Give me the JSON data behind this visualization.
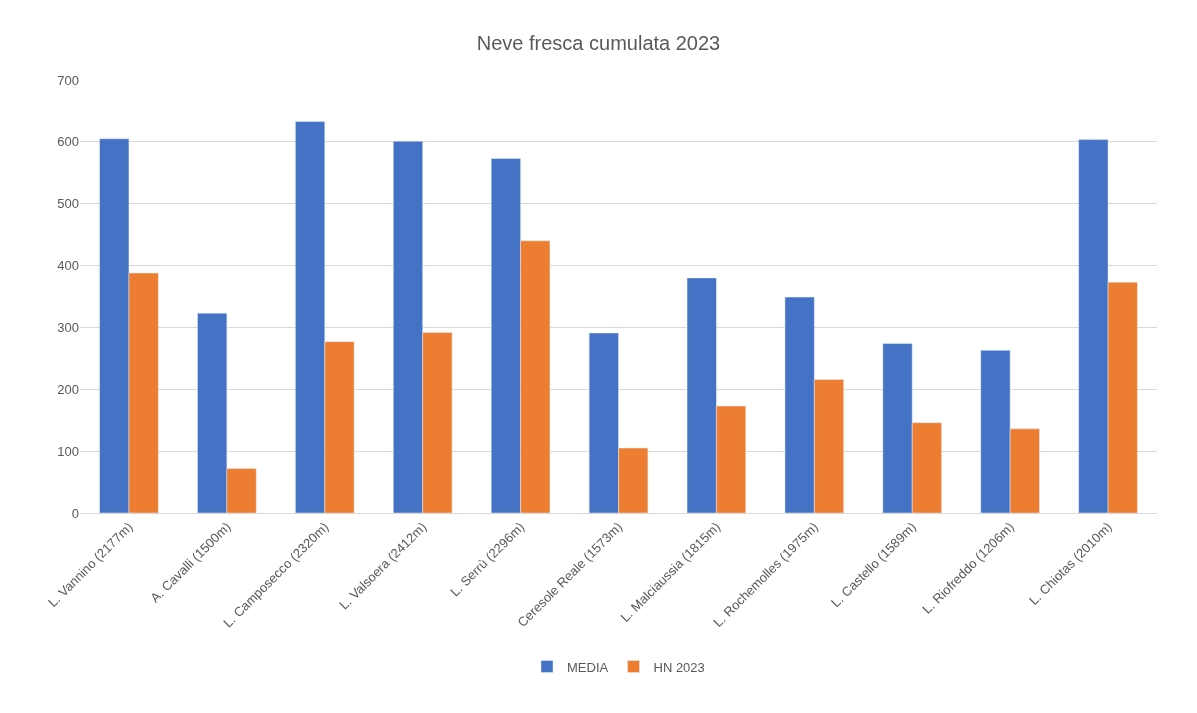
{
  "chart_data": {
    "type": "bar",
    "title": "Neve fresca cumulata 2023",
    "categories": [
      "L. Vannino (2177m)",
      "A. Cavalli (1500m)",
      "L. Camposecco (2320m)",
      "L. Valsoera (2412m)",
      "L. Serrù (2296m)",
      "Ceresole Reale (1573m)",
      "L. Malciaussia (1815m)",
      "L. Rochemolles (1975m)",
      "L. Castello (1589m)",
      "L. Riofreddo (1206m)",
      "L. Chiotas (2010m)"
    ],
    "series": [
      {
        "name": "MEDIA",
        "color": "#4472c4",
        "values": [
          605,
          323,
          633,
          601,
          573,
          291,
          380,
          349,
          274,
          263,
          604
        ]
      },
      {
        "name": "HN 2023",
        "color": "#ed7d31",
        "values": [
          388,
          72,
          277,
          292,
          440,
          105,
          173,
          216,
          146,
          136,
          373
        ]
      }
    ],
    "ylim": [
      0,
      700
    ],
    "yticks": [
      0,
      100,
      200,
      300,
      400,
      500,
      600,
      700
    ],
    "grid": "y",
    "legend": "bottom"
  }
}
